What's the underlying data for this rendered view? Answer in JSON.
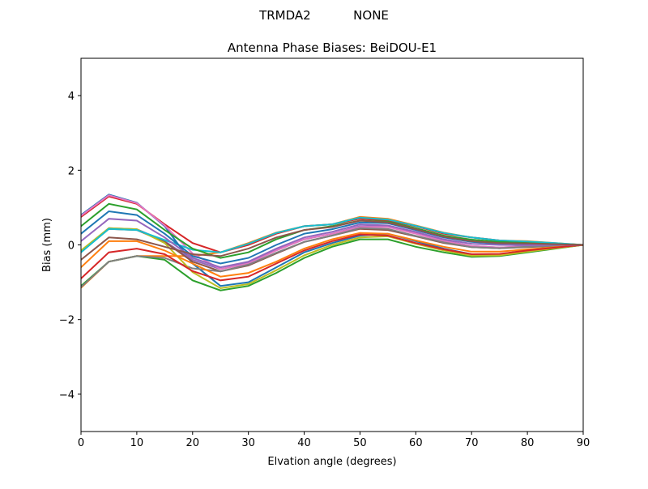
{
  "chart_data": {
    "type": "line",
    "suptitle": "TRMDA2           NONE",
    "title": "Antenna Phase Biases: BeiDOU-E1",
    "xlabel": "Elvation angle (degrees)",
    "ylabel": "Bias (mm)",
    "xlim": [
      0,
      90
    ],
    "ylim": [
      -5,
      5
    ],
    "xticks": [
      "0",
      "10",
      "20",
      "30",
      "40",
      "50",
      "60",
      "70",
      "80",
      "90"
    ],
    "yticks": [
      "−4",
      "−2",
      "0",
      "2",
      "4"
    ],
    "grid": false,
    "legend": "none",
    "colors": [
      "#1f77b4",
      "#ff7f0e",
      "#2ca02c",
      "#d62728",
      "#9467bd",
      "#8c564b",
      "#e377c2",
      "#7f7f7f",
      "#bcbd22",
      "#17becf"
    ],
    "x": [
      0,
      5,
      10,
      15,
      20,
      25,
      30,
      35,
      40,
      45,
      50,
      55,
      60,
      65,
      70,
      75,
      80,
      85,
      90
    ],
    "series": [
      {
        "values": [
          0.8,
          1.35,
          1.13,
          0.5,
          -0.5,
          -1.1,
          -1.0,
          -0.6,
          -0.2,
          0.05,
          0.25,
          0.3,
          0.1,
          -0.1,
          -0.25,
          -0.25,
          -0.15,
          -0.08,
          0
        ]
      },
      {
        "values": [
          -1.15,
          -0.45,
          -0.3,
          -0.3,
          -0.3,
          -0.2,
          0.05,
          0.33,
          0.5,
          0.55,
          0.75,
          0.7,
          0.52,
          0.33,
          0.2,
          0.12,
          0.1,
          0.05,
          0
        ]
      },
      {
        "values": [
          -1.1,
          -0.45,
          -0.3,
          -0.4,
          -0.95,
          -1.22,
          -1.1,
          -0.75,
          -0.35,
          -0.05,
          0.15,
          0.15,
          -0.05,
          -0.2,
          -0.32,
          -0.3,
          -0.2,
          -0.1,
          0
        ]
      },
      {
        "values": [
          0.75,
          1.3,
          1.1,
          0.55,
          0.05,
          -0.2,
          0.0,
          0.3,
          0.5,
          0.55,
          0.7,
          0.65,
          0.5,
          0.3,
          0.2,
          0.12,
          0.08,
          0.04,
          0
        ]
      },
      {
        "values": [
          -0.18,
          0.45,
          0.42,
          0.1,
          -0.4,
          -0.65,
          -0.48,
          -0.14,
          0.15,
          0.3,
          0.5,
          0.5,
          0.31,
          0.12,
          -0.03,
          -0.07,
          -0.03,
          -0.02,
          0
        ]
      },
      {
        "values": [
          -0.18,
          0.43,
          0.4,
          0.08,
          -0.45,
          -0.71,
          -0.55,
          -0.23,
          0.08,
          0.25,
          0.43,
          0.4,
          0.23,
          0.05,
          -0.06,
          -0.09,
          -0.06,
          -0.03,
          0
        ]
      },
      {
        "values": [
          0.78,
          1.33,
          1.12,
          0.52,
          -0.23,
          -0.65,
          -0.5,
          -0.15,
          0.15,
          0.3,
          0.48,
          0.48,
          0.3,
          0.1,
          -0.03,
          -0.07,
          -0.04,
          -0.02,
          0
        ]
      },
      {
        "values": [
          -1.13,
          -0.45,
          -0.3,
          -0.35,
          -0.63,
          -0.71,
          -0.53,
          -0.21,
          0.08,
          0.25,
          0.45,
          0.43,
          0.24,
          0.07,
          -0.06,
          -0.09,
          -0.05,
          -0.03,
          0
        ]
      },
      {
        "values": [
          -0.15,
          0.45,
          0.42,
          0.05,
          -0.73,
          -1.16,
          -1.05,
          -0.68,
          -0.28,
          0,
          0.2,
          0.23,
          0.03,
          -0.15,
          -0.29,
          -0.28,
          -0.18,
          -0.09,
          0
        ]
      },
      {
        "values": [
          -0.2,
          0.43,
          0.4,
          0.13,
          -0.13,
          -0.2,
          0.03,
          0.32,
          0.5,
          0.55,
          0.73,
          0.68,
          0.51,
          0.32,
          0.2,
          0.12,
          0.09,
          0.05,
          0
        ]
      },
      {
        "values": [
          0.3,
          0.9,
          0.8,
          0.3,
          -0.3,
          -0.5,
          -0.35,
          0,
          0.3,
          0.42,
          0.6,
          0.58,
          0.4,
          0.2,
          0.08,
          0.03,
          0.02,
          0.01,
          0
        ]
      },
      {
        "values": [
          -0.6,
          0.1,
          0.1,
          -0.15,
          -0.5,
          -0.85,
          -0.75,
          -0.45,
          -0.1,
          0.15,
          0.32,
          0.3,
          0.12,
          -0.05,
          -0.18,
          -0.18,
          -0.12,
          -0.06,
          0
        ]
      },
      {
        "values": [
          0.5,
          1.1,
          0.95,
          0.4,
          -0.1,
          -0.35,
          -0.2,
          0.15,
          0.4,
          0.5,
          0.65,
          0.62,
          0.45,
          0.25,
          0.14,
          0.08,
          0.05,
          0.02,
          0
        ]
      },
      {
        "values": [
          -0.9,
          -0.2,
          -0.1,
          -0.25,
          -0.7,
          -0.95,
          -0.85,
          -0.5,
          -0.15,
          0.1,
          0.28,
          0.25,
          0.05,
          -0.12,
          -0.25,
          -0.24,
          -0.15,
          -0.07,
          0
        ]
      },
      {
        "values": [
          0.1,
          0.7,
          0.65,
          0.2,
          -0.35,
          -0.6,
          -0.45,
          -0.1,
          0.2,
          0.35,
          0.55,
          0.52,
          0.35,
          0.15,
          0.03,
          0,
          -0.01,
          0,
          0
        ]
      },
      {
        "values": [
          -0.4,
          0.2,
          0.15,
          -0.05,
          -0.25,
          -0.3,
          -0.1,
          0.2,
          0.4,
          0.48,
          0.65,
          0.6,
          0.42,
          0.22,
          0.1,
          0.05,
          0.04,
          0.02,
          0
        ]
      }
    ]
  }
}
